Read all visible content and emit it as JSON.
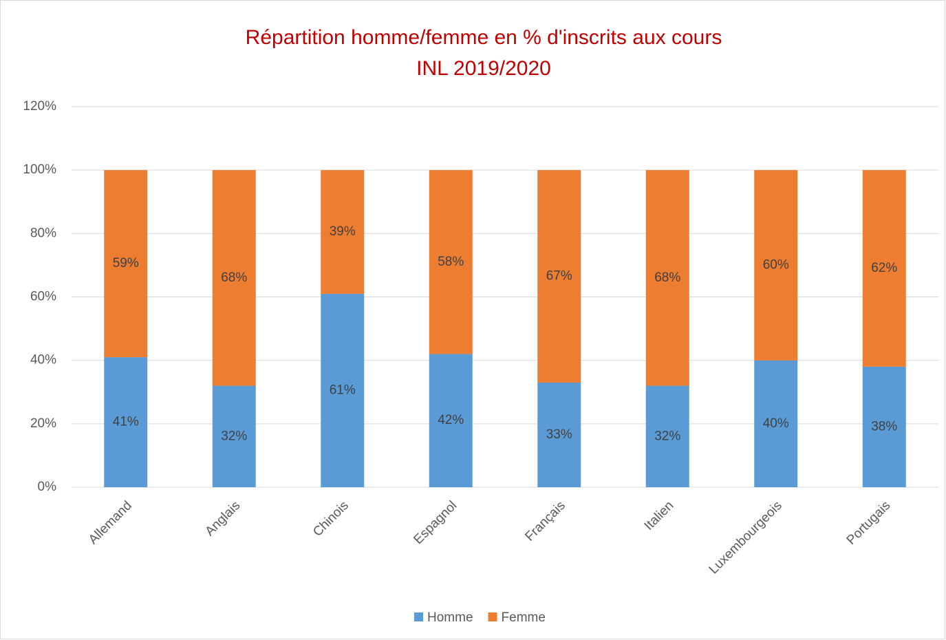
{
  "chart_data": {
    "type": "stacked_bar",
    "title": [
      "Répartition homme/femme en % d'inscrits aux cours",
      "INL 2019/2020"
    ],
    "categories": [
      "Allemand",
      "Anglais",
      "Chinois",
      "Espagnol",
      "Français",
      "Italien",
      "Luxembourgeois",
      "Portugais"
    ],
    "series": [
      {
        "name": "Homme",
        "color": "#5b9bd5",
        "values": [
          41,
          32,
          61,
          42,
          33,
          32,
          40,
          38
        ],
        "value_labels": [
          "41%",
          "32%",
          "61%",
          "42%",
          "33%",
          "32%",
          "40%",
          "38%"
        ]
      },
      {
        "name": "Femme",
        "color": "#ed7d31",
        "values": [
          59,
          68,
          39,
          58,
          67,
          68,
          60,
          62
        ],
        "value_labels": [
          "59%",
          "68%",
          "39%",
          "58%",
          "67%",
          "68%",
          "60%",
          "62%"
        ]
      }
    ],
    "ylim": [
      0,
      120
    ],
    "yticks": [
      {
        "value": 0,
        "label": "0%"
      },
      {
        "value": 20,
        "label": "20%"
      },
      {
        "value": 40,
        "label": "40%"
      },
      {
        "value": 60,
        "label": "60%"
      },
      {
        "value": 80,
        "label": "80%"
      },
      {
        "value": 100,
        "label": "100%"
      },
      {
        "value": 120,
        "label": "120%"
      }
    ],
    "grid": true,
    "legend": "bottom",
    "title_color": "#c00000"
  }
}
